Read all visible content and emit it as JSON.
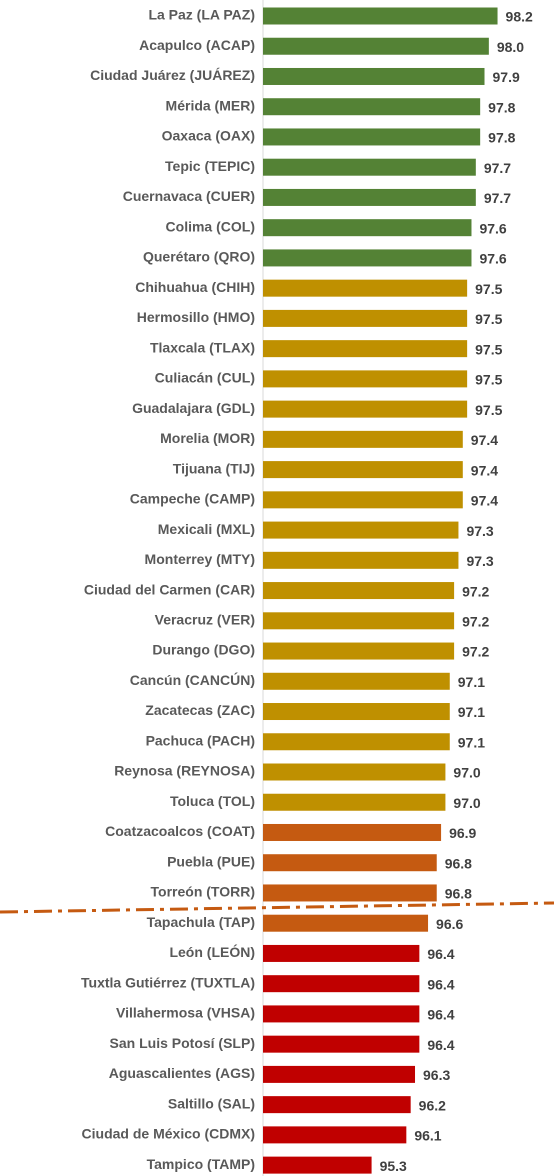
{
  "chart_data": {
    "type": "bar",
    "orientation": "horizontal",
    "categories": [
      "La Paz (LA PAZ)",
      "Acapulco (ACAP)",
      "Ciudad Juárez (JUÁREZ)",
      "Mérida (MER)",
      "Oaxaca (OAX)",
      "Tepic (TEPIC)",
      "Cuernavaca (CUER)",
      "Colima (COL)",
      "Querétaro (QRO)",
      "Chihuahua (CHIH)",
      "Hermosillo (HMO)",
      "Tlaxcala (TLAX)",
      "Culiacán (CUL)",
      "Guadalajara (GDL)",
      "Morelia (MOR)",
      "Tijuana (TIJ)",
      "Campeche (CAMP)",
      "Mexicali (MXL)",
      "Monterrey (MTY)",
      "Ciudad del Carmen (CAR)",
      "Veracruz (VER)",
      "Durango (DGO)",
      "Cancún (CANCÚN)",
      "Zacatecas (ZAC)",
      "Pachuca (PACH)",
      "Reynosa (REYNOSA)",
      "Toluca (TOL)",
      "Coatzacoalcos (COAT)",
      "Puebla (PUE)",
      "Torreón (TORR)",
      "Tapachula (TAP)",
      "León (LEÓN)",
      "Tuxtla Gutiérrez (TUXTLA)",
      "Villahermosa (VHSA)",
      "San Luis Potosí (SLP)",
      "Aguascalientes (AGS)",
      "Saltillo (SAL)",
      "Ciudad de México (CDMX)",
      "Tampico (TAMP)"
    ],
    "values": [
      98.2,
      98.0,
      97.9,
      97.8,
      97.8,
      97.7,
      97.7,
      97.6,
      97.6,
      97.5,
      97.5,
      97.5,
      97.5,
      97.5,
      97.4,
      97.4,
      97.4,
      97.3,
      97.3,
      97.2,
      97.2,
      97.2,
      97.1,
      97.1,
      97.1,
      97.0,
      97.0,
      96.9,
      96.8,
      96.8,
      96.6,
      96.4,
      96.4,
      96.4,
      96.4,
      96.3,
      96.2,
      96.1,
      95.3
    ],
    "value_labels": [
      "98.2",
      "98.0",
      "97.9",
      "97.8",
      "97.8",
      "97.7",
      "97.7",
      "97.6",
      "97.6",
      "97.5",
      "97.5",
      "97.5",
      "97.5",
      "97.5",
      "97.4",
      "97.4",
      "97.4",
      "97.3",
      "97.3",
      "97.2",
      "97.2",
      "97.2",
      "97.1",
      "97.1",
      "97.1",
      "97.0",
      "97.0",
      "96.9",
      "96.8",
      "96.8",
      "96.6",
      "96.4",
      "96.4",
      "96.4",
      "96.4",
      "96.3",
      "96.2",
      "96.1",
      "95.3"
    ],
    "colors": [
      "#548235",
      "#548235",
      "#548235",
      "#548235",
      "#548235",
      "#548235",
      "#548235",
      "#548235",
      "#548235",
      "#bf9000",
      "#bf9000",
      "#bf9000",
      "#bf9000",
      "#bf9000",
      "#bf9000",
      "#bf9000",
      "#bf9000",
      "#bf9000",
      "#bf9000",
      "#bf9000",
      "#bf9000",
      "#bf9000",
      "#bf9000",
      "#bf9000",
      "#bf9000",
      "#bf9000",
      "#bf9000",
      "#c55a11",
      "#c55a11",
      "#c55a11",
      "#c55a11",
      "#c00000",
      "#c00000",
      "#c00000",
      "#c00000",
      "#c00000",
      "#c00000",
      "#c00000",
      "#c00000"
    ],
    "xlim": [
      92.8,
      99.5
    ]
  }
}
